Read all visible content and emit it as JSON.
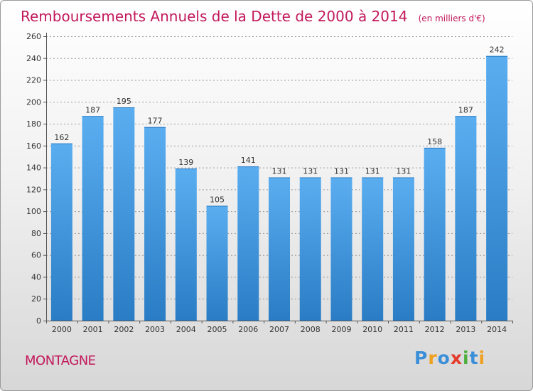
{
  "chart_data": {
    "type": "bar",
    "title": "Remboursements Annuels de la Dette de 2000 à 2014",
    "unit": "(en milliers d'€)",
    "categories": [
      "2000",
      "2001",
      "2002",
      "2003",
      "2004",
      "2005",
      "2006",
      "2007",
      "2008",
      "2009",
      "2010",
      "2011",
      "2012",
      "2013",
      "2014"
    ],
    "values": [
      162,
      187,
      195,
      177,
      139,
      105,
      141,
      131,
      131,
      131,
      131,
      131,
      158,
      187,
      242
    ],
    "yticks": [
      0,
      20,
      40,
      60,
      80,
      100,
      120,
      140,
      160,
      180,
      200,
      220,
      240,
      260
    ],
    "ylim": [
      0,
      260
    ],
    "grid": true,
    "xlabel": "",
    "ylabel": ""
  },
  "commune": "MONTAGNE",
  "brand": {
    "letters": [
      "P",
      "r",
      "o",
      "x",
      "i",
      "t",
      "i"
    ],
    "colors": [
      "#3b8fd8",
      "#f0a020",
      "#3b8fd8",
      "#e53b2b",
      "#4cae3c",
      "#3b8fd8",
      "#f0a020"
    ]
  },
  "colors": {
    "bar_light": "#5aaef0",
    "bar_dark": "#2a7cc4",
    "title": "#c2185b",
    "grid": "#9a9a9a"
  }
}
